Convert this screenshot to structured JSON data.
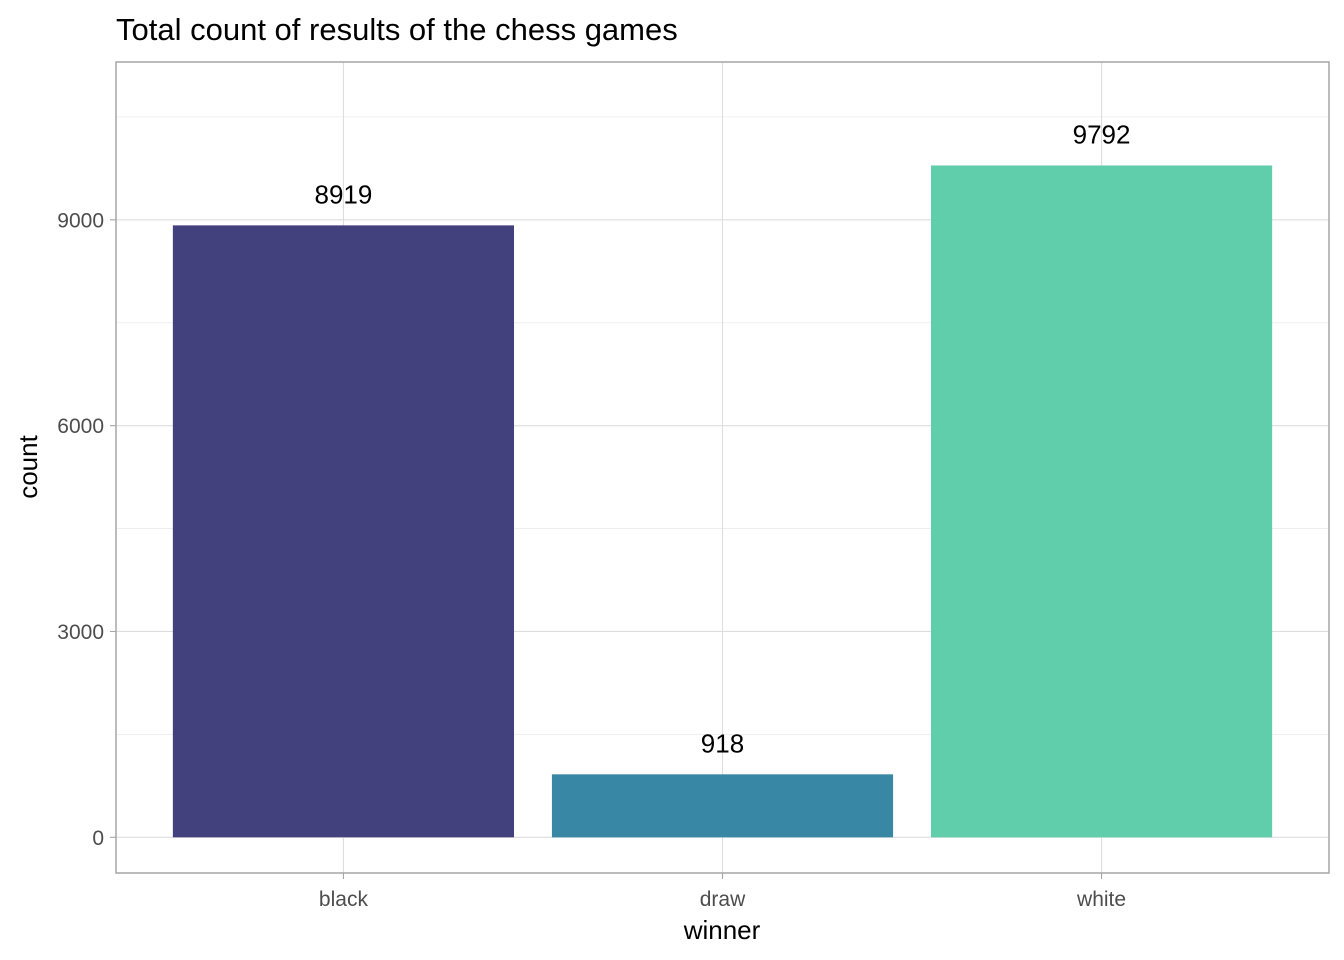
{
  "chart_data": {
    "type": "bar",
    "title": "Total count of results of the chess games",
    "xlabel": "winner",
    "ylabel": "count",
    "categories": [
      "black",
      "draw",
      "white"
    ],
    "values": [
      8919,
      918,
      9792
    ],
    "data_labels": [
      "8919",
      "918",
      "9792"
    ],
    "bar_colors": [
      "#43407e",
      "#3787a5",
      "#60cdab"
    ],
    "ylim": [
      -520,
      11300
    ],
    "yticks": [
      0,
      3000,
      6000,
      9000
    ],
    "ytick_labels": [
      "0",
      "3000",
      "6000",
      "9000"
    ],
    "grid": true,
    "legend": "none"
  }
}
